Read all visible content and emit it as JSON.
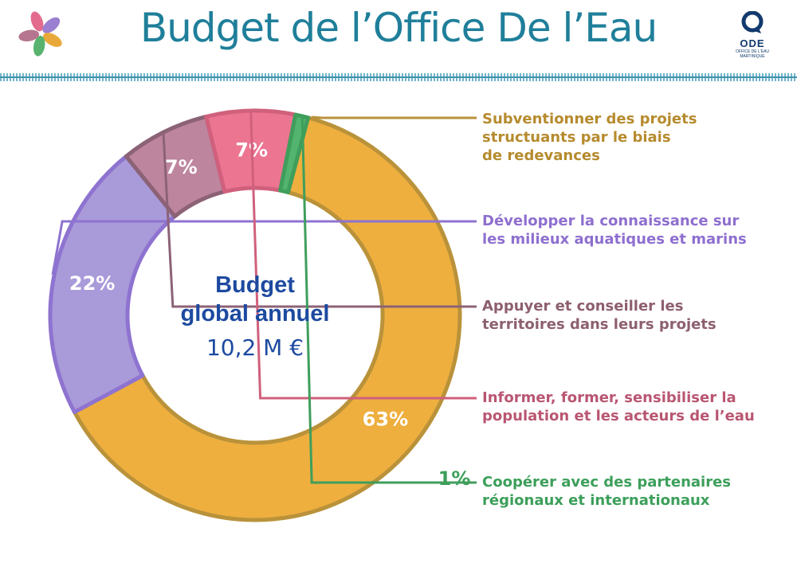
{
  "title": "Budget de l’Office De l’Eau",
  "logo": {
    "word": "ODE",
    "sub1": "OFFICE DE L'EAU",
    "sub2": "MARTINIQUE"
  },
  "center": {
    "line1": "Budget",
    "line2": "global annuel",
    "line3": "10,2 M €"
  },
  "chart_data": {
    "type": "pie",
    "title": "Budget de l’Office De l’Eau",
    "categories": [
      "Subventionner des projets structuants par le biais de redevances",
      "Développer la connaissance sur les milieux aquatiques et marins",
      "Appuyer et conseiller les territoires dans leurs projets",
      "Informer, former, sensibiliser la population et les acteurs de l’eau",
      "Coopérer avec des partenaires régionaux et internationaux"
    ],
    "values": [
      63,
      22,
      7,
      7,
      1
    ],
    "value_labels": [
      "63%",
      "22%",
      "7%",
      "7%",
      "1%"
    ],
    "legend_lines": [
      [
        "Subventionner des projets",
        "structuants par le biais",
        "de redevances"
      ],
      [
        "Développer la connaissance sur",
        "les milieux aquatiques et marins"
      ],
      [
        "Appuyer et conseiller les",
        "territoires dans leurs projets"
      ],
      [
        "Informer, former, sensibiliser la",
        "population et les acteurs de l’eau"
      ],
      [
        "Coopérer avec des partenaires",
        "régionaux et internationaux"
      ]
    ],
    "colors": [
      "#eeaf3f",
      "#a99ad9",
      "#bd859e",
      "#ec7592",
      "#52b46e"
    ],
    "border_colors": [
      "#b9923a",
      "#8e73d0",
      "#8c6276",
      "#d0607c",
      "#3f9e5b"
    ],
    "label_colors": [
      "#b68b2e",
      "#8e6fcf",
      "#8d5f6f",
      "#b95672",
      "#3c9f5a"
    ],
    "donut": true,
    "legend_placement": "right",
    "start_angle_deg": 15
  }
}
